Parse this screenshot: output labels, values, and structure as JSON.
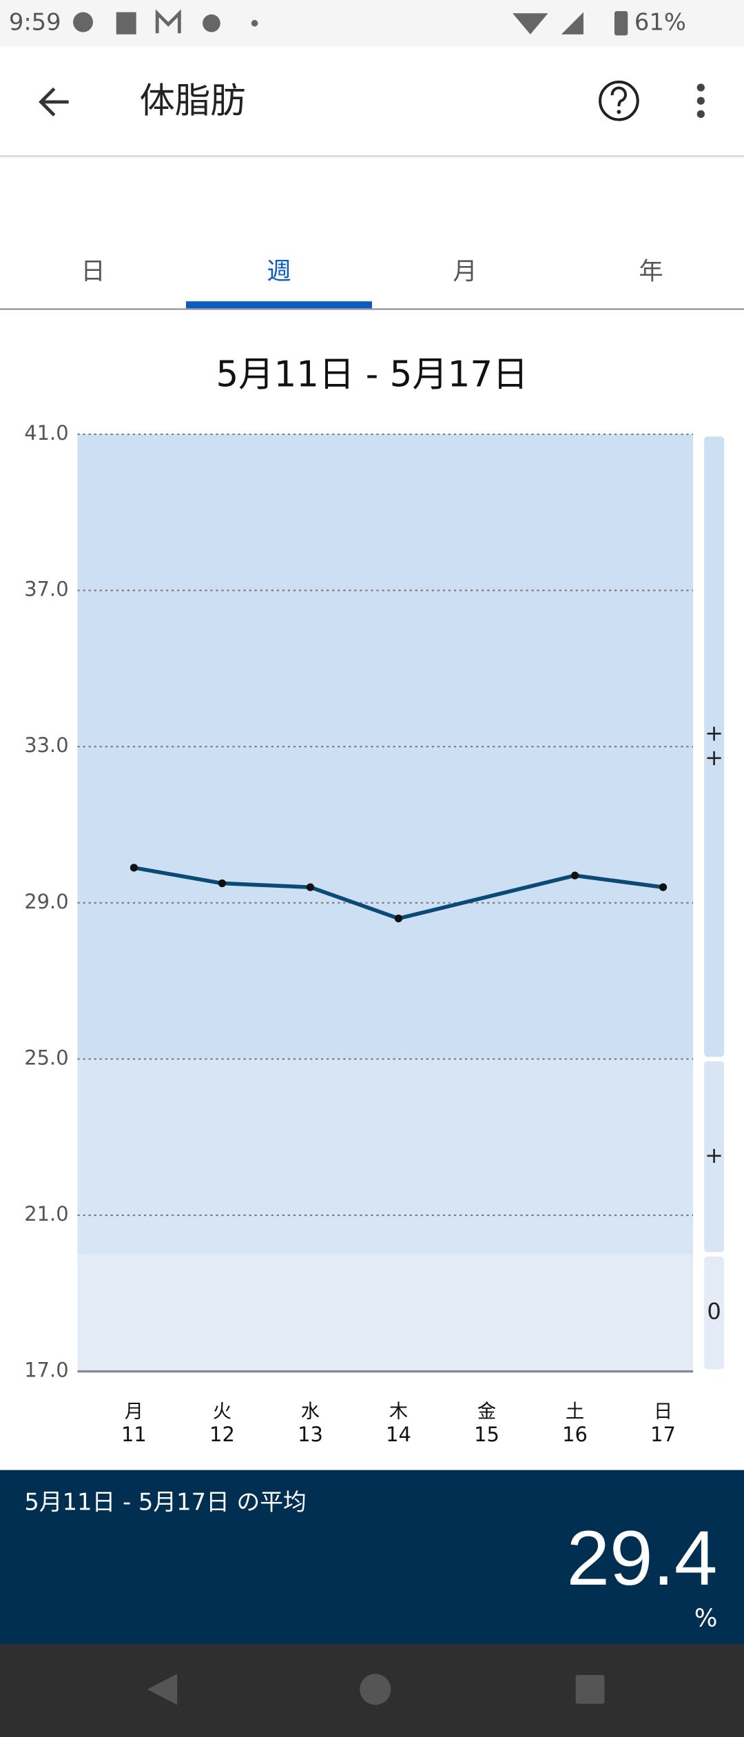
{
  "status_bar": {
    "time": "9:59",
    "battery": "61%"
  },
  "app_bar": {
    "title": "体脂肪"
  },
  "tabs": {
    "items": [
      "日",
      "週",
      "月",
      "年"
    ],
    "selected": 1
  },
  "chart_data": {
    "type": "line",
    "title": "5月11日 - 5月17日",
    "categories": [
      "月",
      "火",
      "水",
      "木",
      "金",
      "土",
      "日"
    ],
    "xticks": [
      11,
      12,
      13,
      14,
      15,
      16,
      17
    ],
    "xlim": [
      10.36,
      17.34
    ],
    "ylim": [
      17,
      41
    ],
    "yticks": [
      {
        "value": 17,
        "label": "17.0"
      },
      {
        "value": 21,
        "label": "21.0"
      },
      {
        "value": 25,
        "label": "25.0"
      },
      {
        "value": 29,
        "label": "29.0"
      },
      {
        "value": 33,
        "label": "33.0"
      },
      {
        "value": 37,
        "label": "37.0"
      },
      {
        "value": 41,
        "label": "41.0"
      }
    ],
    "grid": true,
    "bands": [
      {
        "from": 17,
        "to": 20,
        "label": "0",
        "color": "#e3ebf7"
      },
      {
        "from": 20,
        "to": 25,
        "label": "+",
        "color": "#d8e5f5"
      },
      {
        "from": 25,
        "to": 41,
        "label": "++",
        "color": "#cddff3"
      }
    ],
    "series": [
      {
        "x": [
          11,
          12,
          13,
          14,
          16,
          17
        ],
        "values": [
          29.9,
          29.5,
          29.4,
          28.6,
          29.7,
          29.4
        ],
        "color": "#0b4a75"
      }
    ]
  },
  "summary": {
    "label": "5月11日 - 5月17日 の平均",
    "value": 29.4,
    "unit": "%"
  }
}
